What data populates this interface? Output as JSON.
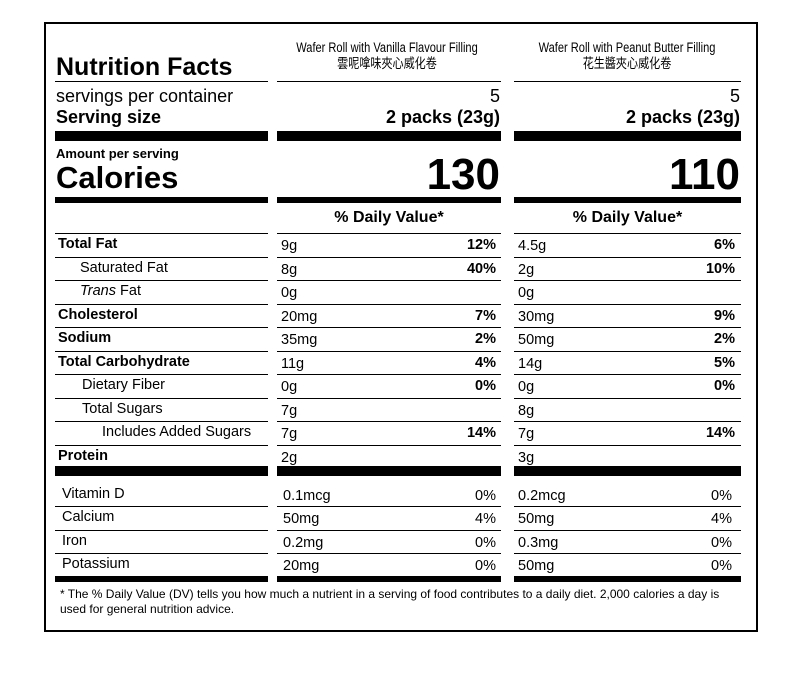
{
  "title": "Nutrition Facts",
  "products": [
    {
      "name_en": "Wafer Roll with Vanilla Flavour Filling",
      "name_zh": "雲呢嗱味夾心威化卷",
      "servings": "5",
      "serving_size": "2 packs (23g)",
      "calories": "130",
      "nutrients": [
        {
          "amount": "9g",
          "dv": "12%"
        },
        {
          "amount": "8g",
          "dv": "40%"
        },
        {
          "amount": "0g",
          "dv": ""
        },
        {
          "amount": "20mg",
          "dv": "7%"
        },
        {
          "amount": "35mg",
          "dv": "2%"
        },
        {
          "amount": "11g",
          "dv": "4%"
        },
        {
          "amount": "0g",
          "dv": "0%"
        },
        {
          "amount": "7g",
          "dv": ""
        },
        {
          "amount": "7g",
          "dv": "14%"
        },
        {
          "amount": "2g",
          "dv": ""
        }
      ],
      "vitamins": [
        {
          "amount": "0.1mcg",
          "dv": "0%"
        },
        {
          "amount": "50mg",
          "dv": "4%"
        },
        {
          "amount": "0.2mg",
          "dv": "0%"
        },
        {
          "amount": "20mg",
          "dv": "0%"
        }
      ]
    },
    {
      "name_en": "Wafer Roll with Peanut Butter Filling",
      "name_zh": "花生醬夾心威化卷",
      "servings": "5",
      "serving_size": "2 packs (23g)",
      "calories": "110",
      "nutrients": [
        {
          "amount": "4.5g",
          "dv": "6%"
        },
        {
          "amount": "2g",
          "dv": "10%"
        },
        {
          "amount": "0g",
          "dv": ""
        },
        {
          "amount": "30mg",
          "dv": "9%"
        },
        {
          "amount": "50mg",
          "dv": "2%"
        },
        {
          "amount": "14g",
          "dv": "5%"
        },
        {
          "amount": "0g",
          "dv": "0%"
        },
        {
          "amount": "8g",
          "dv": ""
        },
        {
          "amount": "7g",
          "dv": "14%"
        },
        {
          "amount": "3g",
          "dv": ""
        }
      ],
      "vitamins": [
        {
          "amount": "0.2mcg",
          "dv": "0%"
        },
        {
          "amount": "50mg",
          "dv": "4%"
        },
        {
          "amount": "0.3mg",
          "dv": "0%"
        },
        {
          "amount": "50mg",
          "dv": "0%"
        }
      ]
    }
  ],
  "servings_label": "servings per container",
  "serving_size_label": "Serving size",
  "amount_per_serving": "Amount per serving",
  "calories_label": "Calories",
  "daily_value_header": "% Daily Value*",
  "nutrient_labels": {
    "total_fat": "Total Fat",
    "saturated_fat": "Saturated Fat",
    "trans_italic": "Trans",
    "trans_rest": " Fat",
    "cholesterol": "Cholesterol",
    "sodium": "Sodium",
    "total_carbohydrate": "Total Carbohydrate",
    "dietary_fiber": "Dietary Fiber",
    "total_sugars": "Total Sugars",
    "added_sugars": "Includes Added Sugars",
    "protein": "Protein"
  },
  "vitamin_labels": [
    "Vitamin D",
    "Calcium",
    "Iron",
    "Potassium"
  ],
  "footnote": "* The % Daily Value (DV) tells you how much a nutrient in a serving of food contributes to a daily diet. 2,000 calories a day is used for general nutrition advice."
}
